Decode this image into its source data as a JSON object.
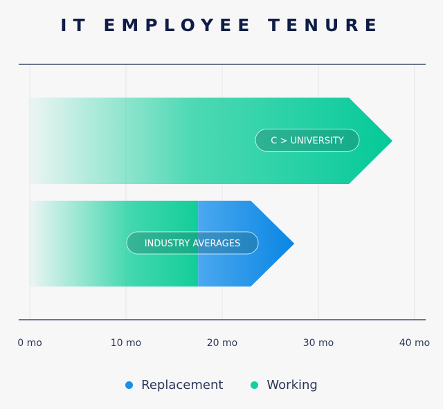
{
  "chart_data": {
    "type": "bar",
    "title": "IT EMPLOYEE TENURE",
    "x_ticks": [
      {
        "value": 0,
        "label": "0 mo"
      },
      {
        "value": 10,
        "label": "10 mo"
      },
      {
        "value": 20,
        "label": "20 mo"
      },
      {
        "value": 30,
        "label": "30 mo"
      },
      {
        "value": 40,
        "label": "40 mo"
      }
    ],
    "xlim": [
      0,
      40
    ],
    "grid": true,
    "categories": [
      "C > UNIVERSITY",
      "INDUSTRY AVERAGES"
    ],
    "series": [
      {
        "name": "Working",
        "color": "#14cf9c",
        "values": [
          37.7,
          17.5
        ]
      },
      {
        "name": "Replacement",
        "color": "#1a8fe6",
        "values": [
          0,
          10
        ]
      }
    ],
    "legend_position": "bottom-center",
    "legend": [
      {
        "name": "Replacement",
        "color": "#1a8fe6"
      },
      {
        "name": "Working",
        "color": "#14cf9c"
      }
    ]
  }
}
